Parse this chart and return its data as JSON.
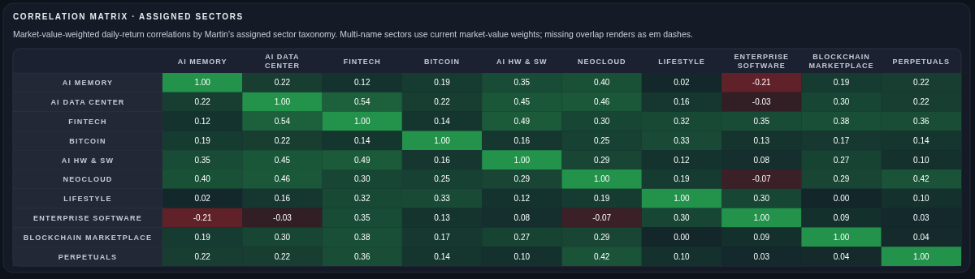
{
  "chart_data": {
    "type": "heatmap",
    "title": "CORRELATION MATRIX · ASSIGNED SECTORS",
    "subtitle": "Market-value-weighted daily-return correlations by Martin's assigned sector taxonomy. Multi-name sectors use current market-value weights; missing overlap renders as em dashes.",
    "categories": [
      "AI MEMORY",
      "AI DATA CENTER",
      "FINTECH",
      "BITCOIN",
      "AI HW & SW",
      "NEOCLOUD",
      "LIFESTYLE",
      "ENTERPRISE SOFTWARE",
      "BLOCKCHAIN MARKETPLACE",
      "PERPETUALS"
    ],
    "y_categories": [
      "AI MEMORY",
      "AI DATA CENTER",
      "FINTECH",
      "BITCOIN",
      "AI HW & SW",
      "NEOCLOUD",
      "LIFESTYLE",
      "ENTERPRISE SOFTWARE",
      "BLOCKCHAIN MARKETPLACE",
      "PERPETUALS"
    ],
    "cells": [
      [
        1.0,
        0.22,
        0.12,
        0.19,
        0.35,
        0.4,
        0.02,
        -0.21,
        0.19,
        0.22
      ],
      [
        0.22,
        1.0,
        0.54,
        0.22,
        0.45,
        0.46,
        0.16,
        -0.03,
        0.3,
        0.22
      ],
      [
        0.12,
        0.54,
        1.0,
        0.14,
        0.49,
        0.3,
        0.32,
        0.35,
        0.38,
        0.36
      ],
      [
        0.19,
        0.22,
        0.14,
        1.0,
        0.16,
        0.25,
        0.33,
        0.13,
        0.17,
        0.14
      ],
      [
        0.35,
        0.45,
        0.49,
        0.16,
        1.0,
        0.29,
        0.12,
        0.08,
        0.27,
        0.1
      ],
      [
        0.4,
        0.46,
        0.3,
        0.25,
        0.29,
        1.0,
        0.19,
        -0.07,
        0.29,
        0.42
      ],
      [
        0.02,
        0.16,
        0.32,
        0.33,
        0.12,
        0.19,
        1.0,
        0.3,
        0.0,
        0.1
      ],
      [
        -0.21,
        -0.03,
        0.35,
        0.13,
        0.08,
        -0.07,
        0.3,
        1.0,
        0.09,
        0.03
      ],
      [
        0.19,
        0.3,
        0.38,
        0.17,
        0.27,
        0.29,
        0.0,
        0.09,
        1.0,
        0.04
      ],
      [
        0.22,
        0.22,
        0.36,
        0.14,
        0.1,
        0.42,
        0.1,
        0.03,
        0.04,
        1.0
      ]
    ],
    "cell_labels": [
      [
        "1.00",
        "0.22",
        "0.12",
        "0.19",
        "0.35",
        "0.40",
        "0.02",
        "-0.21",
        "0.19",
        "0.22"
      ],
      [
        "0.22",
        "1.00",
        "0.54",
        "0.22",
        "0.45",
        "0.46",
        "0.16",
        "-0.03",
        "0.30",
        "0.22"
      ],
      [
        "0.12",
        "0.54",
        "1.00",
        "0.14",
        "0.49",
        "0.30",
        "0.32",
        "0.35",
        "0.38",
        "0.36"
      ],
      [
        "0.19",
        "0.22",
        "0.14",
        "1.00",
        "0.16",
        "0.25",
        "0.33",
        "0.13",
        "0.17",
        "0.14"
      ],
      [
        "0.35",
        "0.45",
        "0.49",
        "0.16",
        "1.00",
        "0.29",
        "0.12",
        "0.08",
        "0.27",
        "0.10"
      ],
      [
        "0.40",
        "0.46",
        "0.30",
        "0.25",
        "0.29",
        "1.00",
        "0.19",
        "-0.07",
        "0.29",
        "0.42"
      ],
      [
        "0.02",
        "0.16",
        "0.32",
        "0.33",
        "0.12",
        "0.19",
        "1.00",
        "0.30",
        "0.00",
        "0.10"
      ],
      [
        "-0.21",
        "-0.03",
        "0.35",
        "0.13",
        "0.08",
        "-0.07",
        "0.30",
        "1.00",
        "0.09",
        "0.03"
      ],
      [
        "0.19",
        "0.30",
        "0.38",
        "0.17",
        "0.27",
        "0.29",
        "0.00",
        "0.09",
        "1.00",
        "0.04"
      ],
      [
        "0.22",
        "0.22",
        "0.36",
        "0.14",
        "0.10",
        "0.42",
        "0.10",
        "0.03",
        "0.04",
        "1.00"
      ]
    ],
    "data_labels": true
  }
}
